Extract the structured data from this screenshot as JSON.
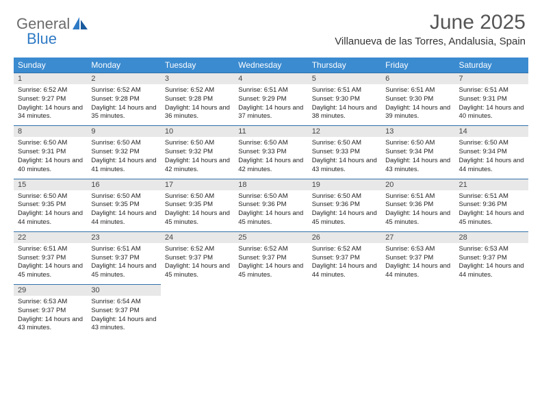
{
  "logo": {
    "text1": "General",
    "text2": "Blue"
  },
  "header": {
    "month": "June 2025",
    "location": "Villanueva de las Torres, Andalusia, Spain"
  },
  "colors": {
    "header_bg": "#3b8bd0",
    "row_border": "#2f6fa8",
    "daynum_bg": "#e8e8e8",
    "logo_gray": "#6b6b6b",
    "logo_blue": "#2f7ac5"
  },
  "weekdays": [
    "Sunday",
    "Monday",
    "Tuesday",
    "Wednesday",
    "Thursday",
    "Friday",
    "Saturday"
  ],
  "days": [
    {
      "n": "1",
      "sunrise": "6:52 AM",
      "sunset": "9:27 PM",
      "daylight": "14 hours and 34 minutes."
    },
    {
      "n": "2",
      "sunrise": "6:52 AM",
      "sunset": "9:28 PM",
      "daylight": "14 hours and 35 minutes."
    },
    {
      "n": "3",
      "sunrise": "6:52 AM",
      "sunset": "9:28 PM",
      "daylight": "14 hours and 36 minutes."
    },
    {
      "n": "4",
      "sunrise": "6:51 AM",
      "sunset": "9:29 PM",
      "daylight": "14 hours and 37 minutes."
    },
    {
      "n": "5",
      "sunrise": "6:51 AM",
      "sunset": "9:30 PM",
      "daylight": "14 hours and 38 minutes."
    },
    {
      "n": "6",
      "sunrise": "6:51 AM",
      "sunset": "9:30 PM",
      "daylight": "14 hours and 39 minutes."
    },
    {
      "n": "7",
      "sunrise": "6:51 AM",
      "sunset": "9:31 PM",
      "daylight": "14 hours and 40 minutes."
    },
    {
      "n": "8",
      "sunrise": "6:50 AM",
      "sunset": "9:31 PM",
      "daylight": "14 hours and 40 minutes."
    },
    {
      "n": "9",
      "sunrise": "6:50 AM",
      "sunset": "9:32 PM",
      "daylight": "14 hours and 41 minutes."
    },
    {
      "n": "10",
      "sunrise": "6:50 AM",
      "sunset": "9:32 PM",
      "daylight": "14 hours and 42 minutes."
    },
    {
      "n": "11",
      "sunrise": "6:50 AM",
      "sunset": "9:33 PM",
      "daylight": "14 hours and 42 minutes."
    },
    {
      "n": "12",
      "sunrise": "6:50 AM",
      "sunset": "9:33 PM",
      "daylight": "14 hours and 43 minutes."
    },
    {
      "n": "13",
      "sunrise": "6:50 AM",
      "sunset": "9:34 PM",
      "daylight": "14 hours and 43 minutes."
    },
    {
      "n": "14",
      "sunrise": "6:50 AM",
      "sunset": "9:34 PM",
      "daylight": "14 hours and 44 minutes."
    },
    {
      "n": "15",
      "sunrise": "6:50 AM",
      "sunset": "9:35 PM",
      "daylight": "14 hours and 44 minutes."
    },
    {
      "n": "16",
      "sunrise": "6:50 AM",
      "sunset": "9:35 PM",
      "daylight": "14 hours and 44 minutes."
    },
    {
      "n": "17",
      "sunrise": "6:50 AM",
      "sunset": "9:35 PM",
      "daylight": "14 hours and 45 minutes."
    },
    {
      "n": "18",
      "sunrise": "6:50 AM",
      "sunset": "9:36 PM",
      "daylight": "14 hours and 45 minutes."
    },
    {
      "n": "19",
      "sunrise": "6:50 AM",
      "sunset": "9:36 PM",
      "daylight": "14 hours and 45 minutes."
    },
    {
      "n": "20",
      "sunrise": "6:51 AM",
      "sunset": "9:36 PM",
      "daylight": "14 hours and 45 minutes."
    },
    {
      "n": "21",
      "sunrise": "6:51 AM",
      "sunset": "9:36 PM",
      "daylight": "14 hours and 45 minutes."
    },
    {
      "n": "22",
      "sunrise": "6:51 AM",
      "sunset": "9:37 PM",
      "daylight": "14 hours and 45 minutes."
    },
    {
      "n": "23",
      "sunrise": "6:51 AM",
      "sunset": "9:37 PM",
      "daylight": "14 hours and 45 minutes."
    },
    {
      "n": "24",
      "sunrise": "6:52 AM",
      "sunset": "9:37 PM",
      "daylight": "14 hours and 45 minutes."
    },
    {
      "n": "25",
      "sunrise": "6:52 AM",
      "sunset": "9:37 PM",
      "daylight": "14 hours and 45 minutes."
    },
    {
      "n": "26",
      "sunrise": "6:52 AM",
      "sunset": "9:37 PM",
      "daylight": "14 hours and 44 minutes."
    },
    {
      "n": "27",
      "sunrise": "6:53 AM",
      "sunset": "9:37 PM",
      "daylight": "14 hours and 44 minutes."
    },
    {
      "n": "28",
      "sunrise": "6:53 AM",
      "sunset": "9:37 PM",
      "daylight": "14 hours and 44 minutes."
    },
    {
      "n": "29",
      "sunrise": "6:53 AM",
      "sunset": "9:37 PM",
      "daylight": "14 hours and 43 minutes."
    },
    {
      "n": "30",
      "sunrise": "6:54 AM",
      "sunset": "9:37 PM",
      "daylight": "14 hours and 43 minutes."
    }
  ],
  "labels": {
    "sunrise": "Sunrise:",
    "sunset": "Sunset:",
    "daylight": "Daylight:"
  },
  "layout": {
    "start_weekday": 0,
    "total_cells": 35
  }
}
